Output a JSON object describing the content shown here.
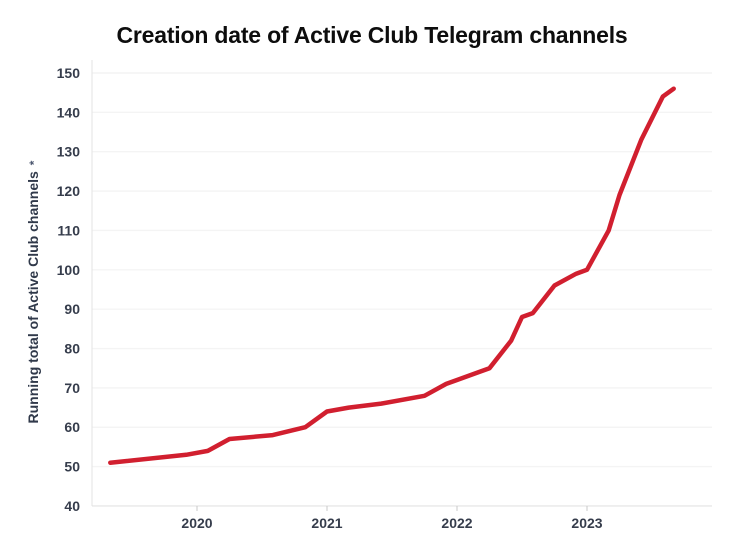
{
  "chart": {
    "title": "Creation date of Active Club Telegram channels",
    "y_axis_label": "Running total of Active Club channels",
    "y_axis_footnote_marker": "*"
  },
  "chart_data": {
    "type": "line",
    "title": "Creation date of Active Club Telegram channels",
    "xlabel": "",
    "ylabel": "Running total of Active Club channels *",
    "ylim": [
      40,
      150
    ],
    "yticks": [
      40,
      50,
      60,
      70,
      80,
      90,
      100,
      110,
      120,
      130,
      140,
      150
    ],
    "xticks": [
      "2020",
      "2021",
      "2022",
      "2023"
    ],
    "grid": "horizontal-light",
    "legend_position": "none",
    "line_color": "#d11f2f",
    "grid_color": "#f4f4f4",
    "axis_line_color": "#e3e3e3",
    "tick_mark_color": "#c9c9c9",
    "tick_label_color": "#363d4c",
    "series": [
      {
        "name": "Running total of Active Club channels",
        "points": [
          {
            "date": "2019-05",
            "value": 51
          },
          {
            "date": "2019-12",
            "value": 53
          },
          {
            "date": "2020-02",
            "value": 54
          },
          {
            "date": "2020-04",
            "value": 57
          },
          {
            "date": "2020-08",
            "value": 58
          },
          {
            "date": "2020-11",
            "value": 60
          },
          {
            "date": "2021-01",
            "value": 64
          },
          {
            "date": "2021-03",
            "value": 65
          },
          {
            "date": "2021-06",
            "value": 66
          },
          {
            "date": "2021-10",
            "value": 68
          },
          {
            "date": "2021-12",
            "value": 71
          },
          {
            "date": "2022-01",
            "value": 72
          },
          {
            "date": "2022-03",
            "value": 74
          },
          {
            "date": "2022-04",
            "value": 75
          },
          {
            "date": "2022-06",
            "value": 82
          },
          {
            "date": "2022-07",
            "value": 88
          },
          {
            "date": "2022-08",
            "value": 89
          },
          {
            "date": "2022-10",
            "value": 96
          },
          {
            "date": "2022-12",
            "value": 99
          },
          {
            "date": "2023-01",
            "value": 100
          },
          {
            "date": "2023-03",
            "value": 110
          },
          {
            "date": "2023-04",
            "value": 119
          },
          {
            "date": "2023-06",
            "value": 133
          },
          {
            "date": "2023-08",
            "value": 144
          },
          {
            "date": "2023-09",
            "value": 146
          }
        ]
      }
    ]
  }
}
